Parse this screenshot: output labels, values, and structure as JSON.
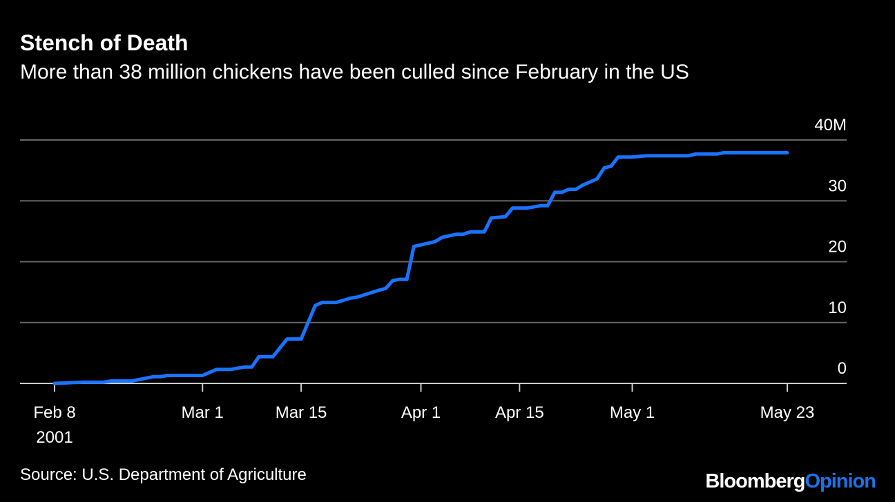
{
  "header": {
    "title": "Stench of Death",
    "subtitle": "More than 38 million chickens have been culled since February in the US"
  },
  "footer": {
    "source": "Source: U.S. Department of Agriculture",
    "logo_brand": "Bloomberg",
    "logo_opinion": "Opinion"
  },
  "colors": {
    "background": "#000000",
    "line": "#1a73ff",
    "grid": "#666666",
    "logo_accent": "#1a73e8"
  },
  "chart_data": {
    "type": "line",
    "title": "Stench of Death",
    "subtitle": "More than 38 million chickens have been culled since February in the US",
    "xlabel": "",
    "ylabel": "",
    "unit": "M",
    "ylim": [
      0,
      40
    ],
    "xlim": [
      "2001-02-08",
      "2001-05-23"
    ],
    "grid": true,
    "legend": "none",
    "y_ticks": [
      {
        "value": 0,
        "label": "0"
      },
      {
        "value": 10,
        "label": "10"
      },
      {
        "value": 20,
        "label": "20"
      },
      {
        "value": 30,
        "label": "30"
      },
      {
        "value": 40,
        "label": "40M"
      }
    ],
    "x_ticks": [
      {
        "date": "2001-02-08",
        "label": "Feb 8",
        "sublabel": "2001"
      },
      {
        "date": "2001-03-01",
        "label": "Mar 1"
      },
      {
        "date": "2001-03-15",
        "label": "Mar 15"
      },
      {
        "date": "2001-04-01",
        "label": "Apr 1"
      },
      {
        "date": "2001-04-15",
        "label": "Apr 15"
      },
      {
        "date": "2001-05-01",
        "label": "May 1"
      },
      {
        "date": "2001-05-23",
        "label": "May 23"
      }
    ],
    "series": [
      {
        "points": [
          [
            "2001-02-08",
            0.0
          ],
          [
            "2001-02-12",
            0.2
          ],
          [
            "2001-02-15",
            0.2
          ],
          [
            "2001-02-16",
            0.4
          ],
          [
            "2001-02-19",
            0.4
          ],
          [
            "2001-02-22",
            1.1
          ],
          [
            "2001-02-23",
            1.1
          ],
          [
            "2001-02-24",
            1.3
          ],
          [
            "2001-03-01",
            1.3
          ],
          [
            "2001-03-03",
            2.3
          ],
          [
            "2001-03-05",
            2.3
          ],
          [
            "2001-03-07",
            2.7
          ],
          [
            "2001-03-08",
            2.7
          ],
          [
            "2001-03-09",
            4.4
          ],
          [
            "2001-03-11",
            4.4
          ],
          [
            "2001-03-13",
            7.3
          ],
          [
            "2001-03-15",
            7.3
          ],
          [
            "2001-03-17",
            12.8
          ],
          [
            "2001-03-18",
            13.3
          ],
          [
            "2001-03-20",
            13.3
          ],
          [
            "2001-03-22",
            14.0
          ],
          [
            "2001-03-23",
            14.2
          ],
          [
            "2001-03-26",
            15.3
          ],
          [
            "2001-03-27",
            15.6
          ],
          [
            "2001-03-28",
            16.9
          ],
          [
            "2001-03-29",
            17.1
          ],
          [
            "2001-03-30",
            17.1
          ],
          [
            "2001-03-31",
            22.5
          ],
          [
            "2001-04-03",
            23.3
          ],
          [
            "2001-04-04",
            24.0
          ],
          [
            "2001-04-06",
            24.5
          ],
          [
            "2001-04-07",
            24.5
          ],
          [
            "2001-04-08",
            24.9
          ],
          [
            "2001-04-10",
            24.9
          ],
          [
            "2001-04-11",
            27.2
          ],
          [
            "2001-04-13",
            27.4
          ],
          [
            "2001-04-14",
            28.8
          ],
          [
            "2001-04-16",
            28.8
          ],
          [
            "2001-04-18",
            29.2
          ],
          [
            "2001-04-19",
            29.2
          ],
          [
            "2001-04-20",
            31.4
          ],
          [
            "2001-04-21",
            31.4
          ],
          [
            "2001-04-22",
            31.9
          ],
          [
            "2001-04-23",
            31.9
          ],
          [
            "2001-04-24",
            32.6
          ],
          [
            "2001-04-26",
            33.6
          ],
          [
            "2001-04-27",
            35.4
          ],
          [
            "2001-04-28",
            35.7
          ],
          [
            "2001-04-29",
            37.2
          ],
          [
            "2001-05-01",
            37.2
          ],
          [
            "2001-05-03",
            37.4
          ],
          [
            "2001-05-09",
            37.4
          ],
          [
            "2001-05-10",
            37.7
          ],
          [
            "2001-05-13",
            37.7
          ],
          [
            "2001-05-14",
            37.9
          ],
          [
            "2001-05-23",
            37.9
          ]
        ]
      }
    ]
  }
}
